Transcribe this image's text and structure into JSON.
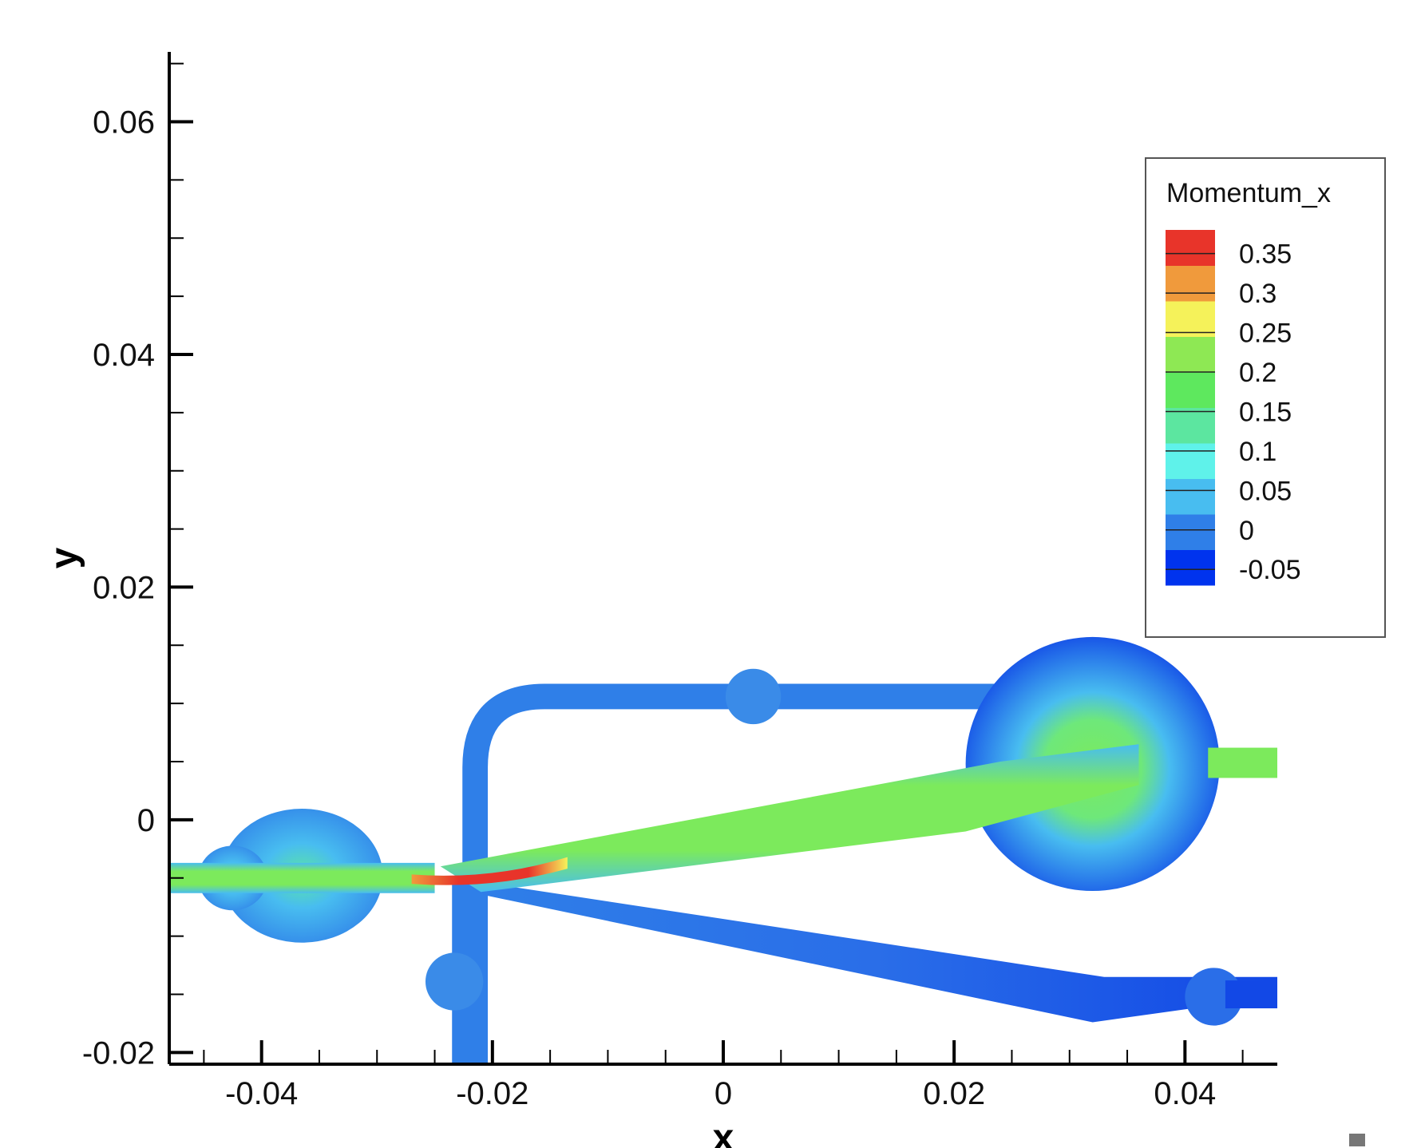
{
  "chart_data": {
    "type": "heatmap",
    "title": "",
    "xlabel": "x",
    "ylabel": "y",
    "xlim": [
      -0.048,
      0.048
    ],
    "ylim": [
      -0.021,
      0.066
    ],
    "x_ticks": [
      {
        "value": -0.04,
        "label": "-0.04"
      },
      {
        "value": -0.02,
        "label": "-0.02"
      },
      {
        "value": 0,
        "label": "0"
      },
      {
        "value": 0.02,
        "label": "0.02"
      },
      {
        "value": 0.04,
        "label": "0.04"
      }
    ],
    "y_ticks": [
      {
        "value": -0.02,
        "label": "-0.02"
      },
      {
        "value": 0,
        "label": "0"
      },
      {
        "value": 0.02,
        "label": "0.02"
      },
      {
        "value": 0.04,
        "label": "0.04"
      },
      {
        "value": 0.06,
        "label": "0.06"
      }
    ],
    "x_minor_step": 0.005,
    "y_minor_step": 0.005,
    "grid": false,
    "legend": {
      "title": "Momentum_x",
      "placement": "top-right",
      "levels": [
        {
          "value": 0.35,
          "label": "0.35"
        },
        {
          "value": 0.3,
          "label": "0.3"
        },
        {
          "value": 0.25,
          "label": "0.25"
        },
        {
          "value": 0.2,
          "label": "0.2"
        },
        {
          "value": 0.15,
          "label": "0.15"
        },
        {
          "value": 0.1,
          "label": "0.1"
        },
        {
          "value": 0.05,
          "label": "0.05"
        },
        {
          "value": 0,
          "label": "0"
        },
        {
          "value": -0.05,
          "label": "-0.05"
        }
      ],
      "range": [
        -0.07,
        0.38
      ],
      "colors": [
        "#0033ee",
        "#2f7fe8",
        "#48bdf0",
        "#5ff2ea",
        "#5ce6a0",
        "#5ee85e",
        "#8ee854",
        "#f5f25a",
        "#f09a3c",
        "#e8342a"
      ]
    },
    "field": {
      "variable": "Momentum_x",
      "jet_color": "#7cea5c",
      "high_color": "#e8342a",
      "low_color": "#2f7fe8",
      "deep_low_color": "#1248e6",
      "mid_color": "#48bdf0"
    }
  }
}
